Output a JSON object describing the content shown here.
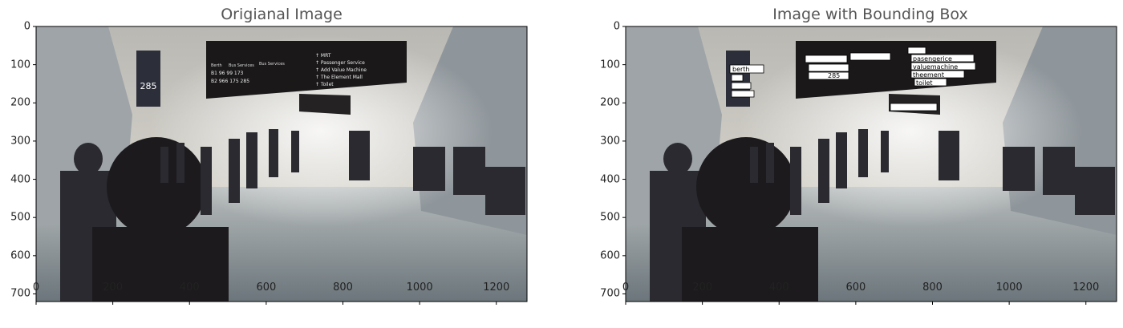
{
  "figure": {
    "panels": [
      {
        "id": "left",
        "title": "Origianal Image",
        "image_description_name": "airport-terminal-photo",
        "x_ticks": [
          "0",
          "200",
          "400",
          "600",
          "800",
          "1000",
          "1200"
        ],
        "y_ticks": [
          "0",
          "100",
          "200",
          "300",
          "400",
          "500",
          "600",
          "700"
        ],
        "x_range": [
          0,
          1280
        ],
        "y_range": [
          0,
          720
        ],
        "sign_text": {
          "col1_header": "Berth",
          "col2_header": "Bus Services",
          "col3_header": "Bus Services",
          "row1": "B1  96  99 173",
          "row2": "B2 966 175 285",
          "right_items": [
            "MRT",
            "Passenger Service",
            "Add Value Machine",
            "The Element Mall",
            "Toilet"
          ],
          "pillar_number": "285"
        }
      },
      {
        "id": "right",
        "title": "Image with Bounding Box",
        "x_ticks": [
          "0",
          "200",
          "400",
          "600",
          "800",
          "1000",
          "1200"
        ],
        "y_ticks": [
          "0",
          "100",
          "200",
          "300",
          "400",
          "500",
          "600",
          "700"
        ],
        "x_range": [
          0,
          1280
        ],
        "y_range": [
          0,
          720
        ],
        "box_labels": [
          "berth",
          "pasengerice",
          "valuemachine",
          "theement",
          "toilet",
          "285"
        ]
      }
    ],
    "colors": {
      "sign_dark": "#1a1818",
      "floor": "#8e979c",
      "ceiling": "#c9c8c4",
      "box_fill": "#ffffff",
      "box_stroke": "#000000"
    }
  }
}
